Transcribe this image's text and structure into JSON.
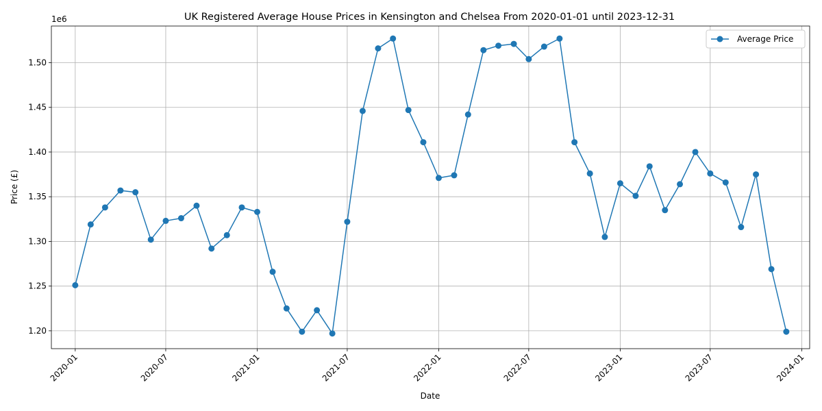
{
  "chart_data": {
    "type": "line",
    "title": "UK Registered Average House Prices in Kensington and Chelsea From 2020-01-01 until 2023-12-31",
    "xlabel": "Date",
    "ylabel": "Price (£)",
    "y_scale_label": "1e6",
    "xlim": [
      "2019-11-14",
      "2024-01-17"
    ],
    "ylim": [
      1180000,
      1541000
    ],
    "x_ticks": [
      "2020-01",
      "2020-07",
      "2021-01",
      "2021-07",
      "2022-01",
      "2022-07",
      "2023-01",
      "2023-07",
      "2024-01"
    ],
    "y_ticks": [
      1200000,
      1250000,
      1300000,
      1350000,
      1400000,
      1450000,
      1500000
    ],
    "y_tick_labels": [
      "1.20",
      "1.25",
      "1.30",
      "1.35",
      "1.40",
      "1.45",
      "1.50"
    ],
    "grid": true,
    "legend": "top-right",
    "series": [
      {
        "name": "Average Price",
        "color": "#1f77b4",
        "marker": "circle",
        "x": [
          "2020-01-01",
          "2020-02-01",
          "2020-03-01",
          "2020-04-01",
          "2020-05-01",
          "2020-06-01",
          "2020-07-01",
          "2020-08-01",
          "2020-09-01",
          "2020-10-01",
          "2020-11-01",
          "2020-12-01",
          "2021-01-01",
          "2021-02-01",
          "2021-03-01",
          "2021-04-01",
          "2021-05-01",
          "2021-06-01",
          "2021-07-01",
          "2021-08-01",
          "2021-09-01",
          "2021-10-01",
          "2021-11-01",
          "2021-12-01",
          "2022-01-01",
          "2022-02-01",
          "2022-03-01",
          "2022-04-01",
          "2022-05-01",
          "2022-06-01",
          "2022-07-01",
          "2022-08-01",
          "2022-09-01",
          "2022-10-01",
          "2022-11-01",
          "2022-12-01",
          "2023-01-01",
          "2023-02-01",
          "2023-03-01",
          "2023-04-01",
          "2023-05-01",
          "2023-06-01",
          "2023-07-01",
          "2023-08-01",
          "2023-09-01",
          "2023-10-01",
          "2023-11-01",
          "2023-12-01"
        ],
        "values": [
          1251000,
          1319000,
          1338000,
          1357000,
          1355000,
          1302000,
          1323000,
          1326000,
          1340000,
          1292000,
          1307000,
          1338000,
          1333000,
          1266000,
          1225000,
          1199000,
          1223000,
          1197000,
          1322000,
          1446000,
          1516000,
          1527000,
          1447000,
          1411000,
          1371000,
          1374000,
          1442000,
          1514000,
          1519000,
          1521000,
          1504000,
          1518000,
          1527000,
          1411000,
          1376000,
          1305000,
          1365000,
          1351000,
          1384000,
          1335000,
          1364000,
          1400000,
          1376000,
          1366000,
          1316000,
          1375000,
          1269000,
          1199000
        ]
      }
    ]
  }
}
